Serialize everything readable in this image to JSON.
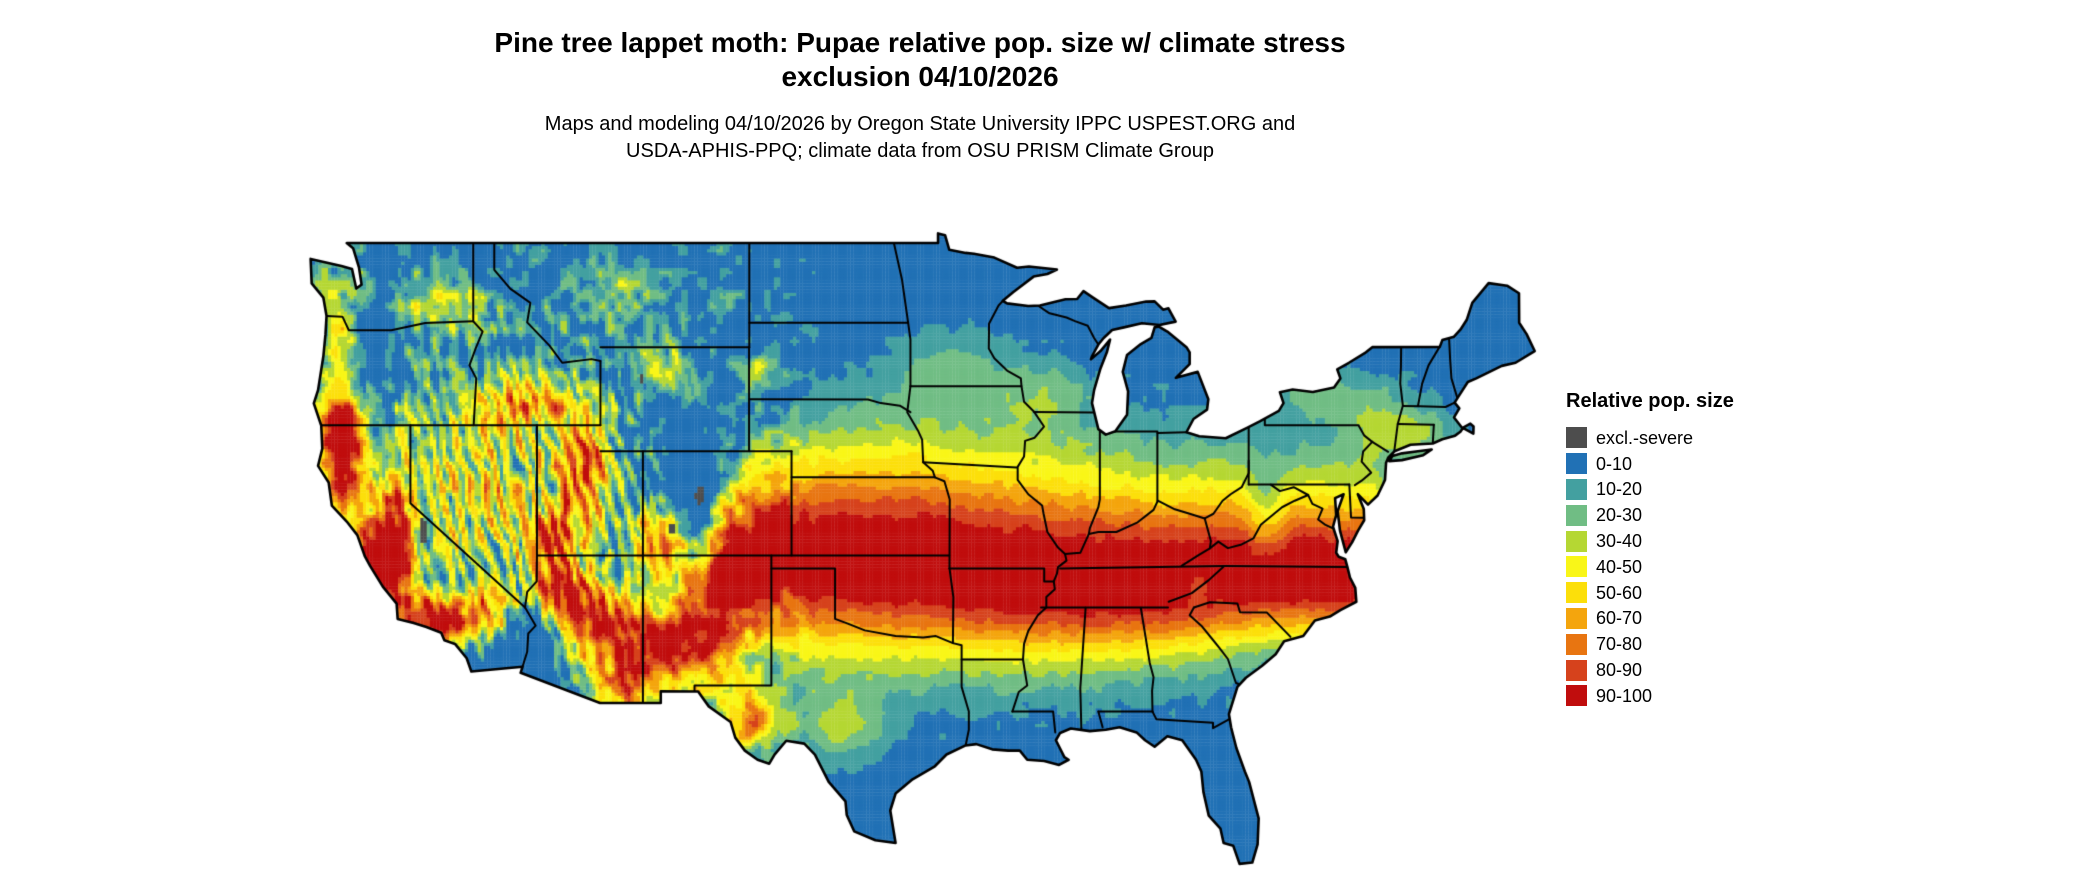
{
  "header": {
    "title_line1": "Pine tree lappet moth: Pupae relative pop. size w/ climate stress",
    "title_line2": "exclusion 04/10/2026",
    "subtitle_line1": "Maps and modeling 04/10/2026 by Oregon State University IPPC USPEST.ORG and",
    "subtitle_line2": "USDA-APHIS-PPQ; climate data from OSU PRISM Climate Group"
  },
  "legend": {
    "title": "Relative pop. size",
    "items": [
      {
        "label": "excl.-severe",
        "color": "#4d4d4d"
      },
      {
        "label": "0-10",
        "color": "#2171b5"
      },
      {
        "label": "10-20",
        "color": "#43a0a0"
      },
      {
        "label": "20-30",
        "color": "#70bd84"
      },
      {
        "label": "30-40",
        "color": "#b5d733"
      },
      {
        "label": "40-50",
        "color": "#f9f618"
      },
      {
        "label": "50-60",
        "color": "#fcdf0a"
      },
      {
        "label": "60-70",
        "color": "#f4a50d"
      },
      {
        "label": "70-80",
        "color": "#e87511"
      },
      {
        "label": "80-90",
        "color": "#d6421c"
      },
      {
        "label": "90-100",
        "color": "#c00d0d"
      }
    ]
  },
  "map": {
    "outline_color": "#000000",
    "background": "#ffffff"
  }
}
